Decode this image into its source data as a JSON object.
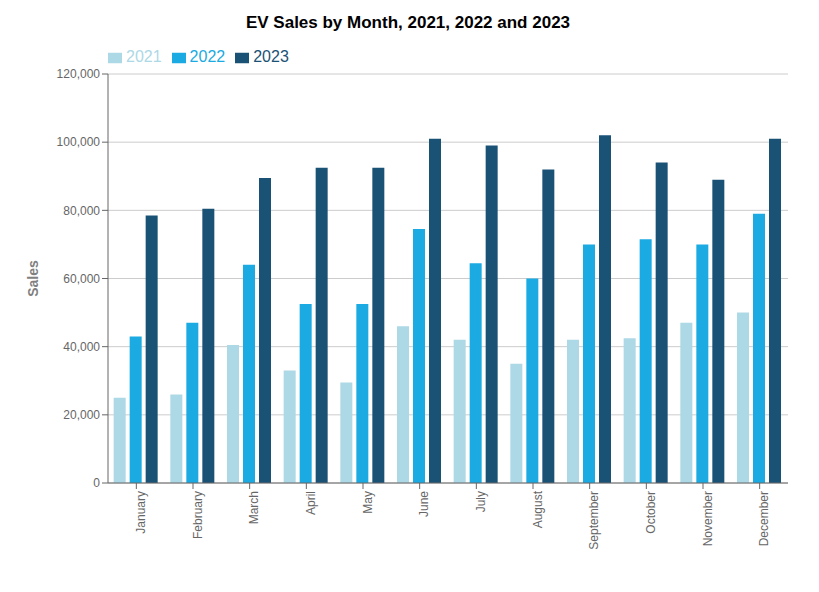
{
  "chart_data": {
    "type": "bar",
    "title": "EV Sales by Month, 2021, 2022 and 2023",
    "categories": [
      "January",
      "February",
      "March",
      "April",
      "May",
      "June",
      "July",
      "August",
      "September",
      "October",
      "November",
      "December"
    ],
    "series": [
      {
        "name": "2021",
        "color": "#add8e6",
        "values": [
          25000,
          26000,
          40500,
          33000,
          29500,
          46000,
          42000,
          35000,
          42000,
          42500,
          47000,
          50000
        ]
      },
      {
        "name": "2022",
        "color": "#1baae1",
        "values": [
          43000,
          47000,
          64000,
          52500,
          52500,
          74500,
          64500,
          60000,
          70000,
          71500,
          70000,
          79000
        ]
      },
      {
        "name": "2023",
        "color": "#1a5276",
        "values": [
          78500,
          80500,
          89500,
          92500,
          92500,
          101000,
          99000,
          92000,
          102000,
          94000,
          89000,
          101000
        ]
      }
    ],
    "ylabel": "Sales",
    "ylim": [
      0,
      120000
    ],
    "yticks": [
      0,
      {
        "value": 20000,
        "label": "20,000"
      },
      {
        "value": 40000,
        "label": "40,000"
      },
      {
        "value": 60000,
        "label": "60,000"
      },
      {
        "value": 80000,
        "label": "80,000"
      },
      {
        "value": 100000,
        "label": "100,000"
      },
      {
        "value": 120000,
        "label": "120,000"
      }
    ],
    "grid": true,
    "legend": "upper left"
  }
}
